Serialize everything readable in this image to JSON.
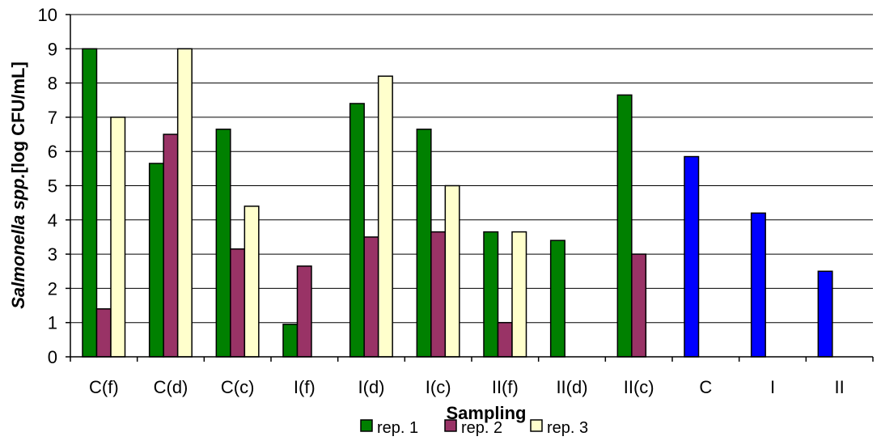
{
  "chart_data": {
    "type": "bar",
    "xlabel": "Sampling",
    "ylabel_italic": "Salmonella spp.",
    "ylabel_rest": "[log CFU/mL]",
    "ylim": [
      0,
      10
    ],
    "yticks": [
      0,
      1,
      2,
      3,
      4,
      5,
      6,
      7,
      8,
      9,
      10
    ],
    "grid": "horizontal",
    "legend_position": "bottom",
    "categories": [
      "C(f)",
      "C(d)",
      "C(c)",
      "I(f)",
      "I(d)",
      "I(c)",
      "II(f)",
      "II(d)",
      "II(c)",
      "C",
      "I",
      "II"
    ],
    "series": [
      {
        "name": "rep. 1",
        "color": "#008000",
        "values": [
          9.0,
          5.65,
          6.65,
          0.95,
          7.4,
          6.65,
          3.65,
          3.4,
          7.65,
          null,
          null,
          null
        ]
      },
      {
        "name": "rep. 2",
        "color": "#993366",
        "values": [
          1.4,
          6.5,
          3.15,
          2.65,
          3.5,
          3.65,
          1.0,
          null,
          3.0,
          null,
          null,
          null
        ]
      },
      {
        "name": "rep. 3",
        "color": "#FFFFCC",
        "values": [
          7.0,
          9.0,
          4.4,
          null,
          8.2,
          5.0,
          3.65,
          null,
          null,
          null,
          null,
          null
        ]
      }
    ],
    "mean_series": {
      "color": "#0000FF",
      "values": [
        null,
        null,
        null,
        null,
        null,
        null,
        null,
        null,
        null,
        5.85,
        4.2,
        2.5
      ]
    }
  }
}
